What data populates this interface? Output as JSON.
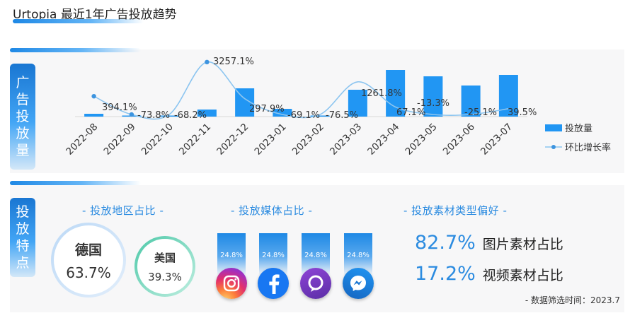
{
  "header": {
    "title": "Urtopia 最近1年广告投放趋势"
  },
  "section1": {
    "side_label": [
      "广",
      "告",
      "投",
      "放",
      "量"
    ]
  },
  "section2": {
    "side_label": [
      "投",
      "放",
      "特",
      "点"
    ],
    "region": {
      "title": "- 投放地区占比 -",
      "items": [
        {
          "name": "德国",
          "pct": "63.7%"
        },
        {
          "name": "美国",
          "pct": "39.3%"
        }
      ]
    },
    "media": {
      "title": "- 投放媒体占比 -",
      "items": [
        {
          "name": "instagram",
          "pct": "24.8%",
          "icon": "instagram-icon"
        },
        {
          "name": "facebook",
          "pct": "24.8%",
          "icon": "facebook-icon"
        },
        {
          "name": "threads",
          "pct": "24.8%",
          "icon": "chat-bubble-icon"
        },
        {
          "name": "messenger",
          "pct": "24.8%",
          "icon": "messenger-icon"
        }
      ]
    },
    "material": {
      "title": "- 投放素材类型偏好 -",
      "items": [
        {
          "pct": "82.7%",
          "label": "图片素材占比"
        },
        {
          "pct": "17.2%",
          "label": "视频素材占比"
        }
      ]
    },
    "note": "- 数据筛选时间：2023.7"
  },
  "colors": {
    "accent": "#2b8be0",
    "bar": "#2196f3",
    "line": "#8cc5f0"
  },
  "chart_data": {
    "type": "bar",
    "categories": [
      "2022-08",
      "2022-09",
      "2022-10",
      "2022-11",
      "2022-12",
      "2023-01",
      "2023-02",
      "2023-03",
      "2023-04",
      "2023-05",
      "2023-06",
      "2023-07"
    ],
    "series": [
      {
        "name": "投放量",
        "type": "bar",
        "values": [
          4,
          1,
          0,
          10,
          40,
          11,
          1,
          38,
          66,
          57,
          44,
          59
        ]
      },
      {
        "name": "环比增长率",
        "type": "line",
        "values": [
          394.1,
          -73.8,
          -68.2,
          3257.1,
          297.9,
          -69.1,
          -76.5,
          1261.8,
          67.1,
          -13.3,
          -25.1,
          39.5
        ]
      }
    ],
    "data_labels": [
      "394.1%",
      "-73.8%",
      "-68.2%",
      "3257.1%",
      "297.9%",
      "-69.1%",
      "-76.5%",
      "1261.8%",
      "67.1%",
      "-13.3%",
      "-25.1%",
      "39.5%"
    ],
    "legend_position": "right"
  }
}
